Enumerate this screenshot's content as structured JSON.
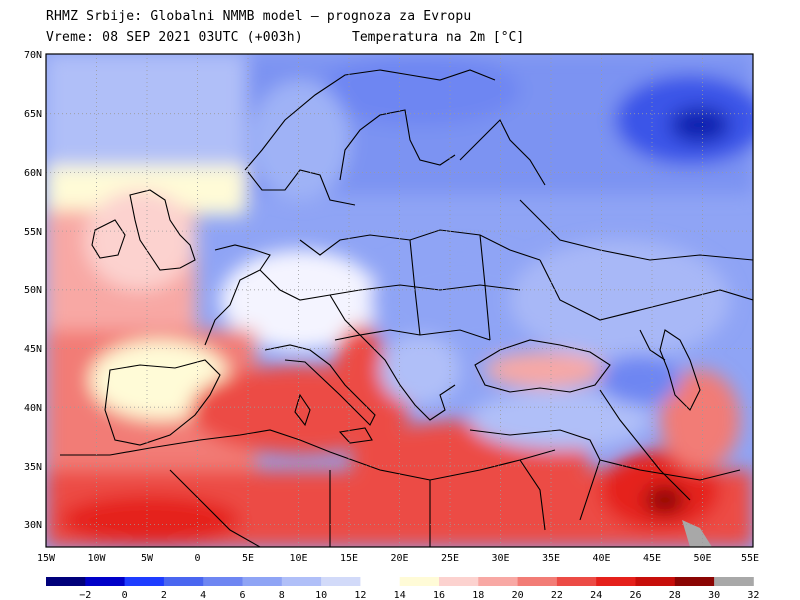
{
  "header": {
    "line1": "RHMZ Srbije: Globalni NMMB model — prognoza za Evropu",
    "line2": "Vreme: 08 SEP 2021 03UTC (+003h)",
    "variable": "Temperatura na 2m [°C]"
  },
  "axes": {
    "lat_ticks": [
      "70N",
      "65N",
      "60N",
      "55N",
      "50N",
      "45N",
      "40N",
      "35N",
      "30N"
    ],
    "lon_ticks": [
      "15W",
      "10W",
      "5W",
      "0",
      "5E",
      "10E",
      "15E",
      "20E",
      "25E",
      "30E",
      "35E",
      "40E",
      "45E",
      "50E",
      "55E"
    ],
    "lat_range": [
      28,
      70
    ],
    "lon_range": [
      -15,
      55
    ]
  },
  "colorbar": {
    "labels": [
      "−2",
      "0",
      "2",
      "4",
      "6",
      "8",
      "10",
      "12",
      "14",
      "16",
      "18",
      "20",
      "22",
      "24",
      "26",
      "28",
      "30",
      "32"
    ],
    "colors": [
      "#00007a",
      "#0000c8",
      "#1e3cff",
      "#4a66f0",
      "#6e86f2",
      "#8fa4f5",
      "#b0bff8",
      "#d2daf9",
      "#ffffff",
      "#fffbd7",
      "#fcd2cf",
      "#f8a8a4",
      "#f27c76",
      "#ec4b45",
      "#e5201b",
      "#c70e0a",
      "#8a0503",
      "#a8a8a8"
    ]
  }
}
